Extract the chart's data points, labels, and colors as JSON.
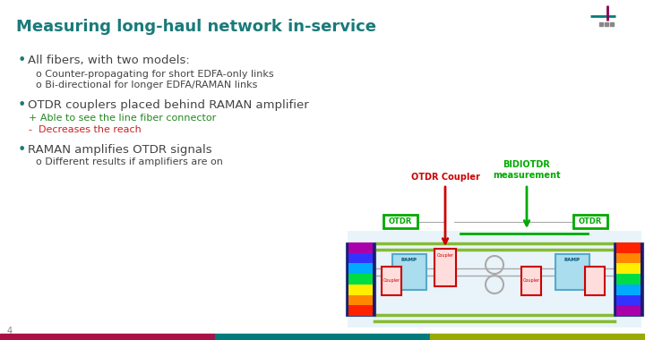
{
  "title": "Measuring long-haul network in-service",
  "title_color": "#1a7a7a",
  "title_fontsize": 13,
  "bg_color": "#ffffff",
  "bullet1": "All fibers, with two models:",
  "sub1a": "o Counter-propagating for short EDFA-only links",
  "sub1b": "o Bi-directional for longer EDFA/RAMAN links",
  "bullet2": "OTDR couplers placed behind RAMAN amplifier",
  "plus_text": "+ Able to see the line fiber connector",
  "minus_text": "-  Decreases the reach",
  "bullet3": "RAMAN amplifies OTDR signals",
  "sub3a": "o Different results if amplifiers are on",
  "page_num": "4",
  "label_otdr_coupler": "OTDR Coupler",
  "label_bidiotdr": "BIDIOTDR\nmeasurement",
  "label_otdr_left": "OTDR",
  "label_otdr_right": "OTDR",
  "teal": "#1a7a7a",
  "red_arrow": "#cc0000",
  "green_arrow": "#00aa00",
  "footer_bar1": "#aa1144",
  "footer_bar2": "#007b7b",
  "footer_bar3": "#99aa00",
  "text_color": "#444444",
  "plus_color": "#228822",
  "minus_color": "#cc2222",
  "diag_bg": "#e8f4fa",
  "fiber_green": "#88bb33",
  "raman_fill": "#aaddee",
  "raman_edge": "#55aacc",
  "coupler_fill": "#ffdddd",
  "coupler_edge": "#cc0000",
  "otdr_box_fill": "#ffffff",
  "otdr_box_edge": "#00aa00",
  "panel_dark": "#1a1a6e"
}
